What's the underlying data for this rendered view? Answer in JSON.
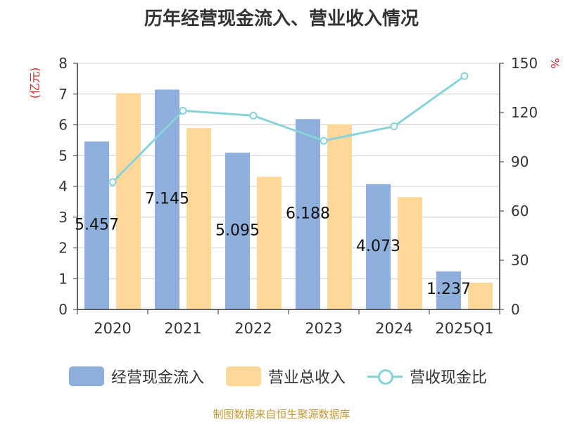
{
  "chart_data": {
    "type": "bar",
    "title": "历年经营现金流入、营业收入情况",
    "categories": [
      "2020",
      "2021",
      "2022",
      "2023",
      "2024",
      "2025Q1"
    ],
    "y_left": {
      "label": "(亿元)",
      "range": [
        0,
        8
      ],
      "ticks": [
        "0",
        "1",
        "2",
        "3",
        "4",
        "5",
        "6",
        "7",
        "8"
      ]
    },
    "y_right": {
      "label": "%",
      "range": [
        0,
        150
      ],
      "ticks": [
        "0",
        "30",
        "60",
        "90",
        "120",
        "150"
      ]
    },
    "series": [
      {
        "name": "经营现金流入",
        "type": "bar",
        "axis": "left",
        "color": "#8eaedb",
        "values": [
          5.457,
          7.145,
          5.095,
          6.188,
          4.073,
          1.237
        ],
        "data_labels": [
          "5.457",
          "7.145",
          "5.095",
          "6.188",
          "4.073",
          "1.237"
        ]
      },
      {
        "name": "营业总收入",
        "type": "bar",
        "axis": "left",
        "color": "#ffd899",
        "values": [
          7.03,
          5.9,
          4.31,
          6.02,
          3.65,
          0.87
        ]
      },
      {
        "name": "营收现金比",
        "type": "line",
        "axis": "right",
        "color": "#87d3d8",
        "values": [
          77.6,
          121.1,
          118.1,
          102.8,
          111.6,
          142.2
        ]
      }
    ],
    "grid": true,
    "legend_position": "bottom"
  },
  "footer": {
    "source": "制图数据来自恒生聚源数据库"
  }
}
